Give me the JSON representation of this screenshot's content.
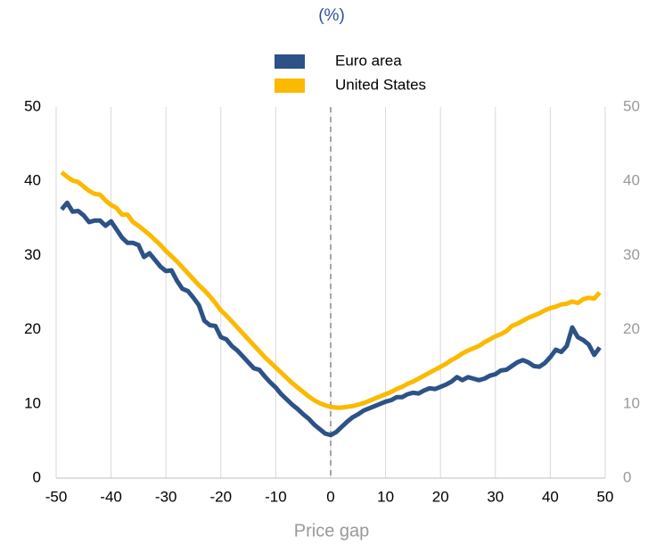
{
  "chart_data": {
    "type": "line",
    "title": "(%)",
    "x_label": "Price gap",
    "x": [
      -49,
      -48,
      -47,
      -46,
      -45,
      -44,
      -43,
      -42,
      -41,
      -40,
      -39,
      -38,
      -37,
      -36,
      -35,
      -34,
      -33,
      -32,
      -31,
      -30,
      -29,
      -28,
      -27,
      -26,
      -25,
      -24,
      -23,
      -22,
      -21,
      -20,
      -19,
      -18,
      -17,
      -16,
      -15,
      -14,
      -13,
      -12,
      -11,
      -10,
      -9,
      -8,
      -7,
      -6,
      -5,
      -4,
      -3,
      -2,
      -1,
      0,
      1,
      2,
      3,
      4,
      5,
      6,
      7,
      8,
      9,
      10,
      11,
      12,
      13,
      14,
      15,
      16,
      17,
      18,
      19,
      20,
      21,
      22,
      23,
      24,
      25,
      26,
      27,
      28,
      29,
      30,
      31,
      32,
      33,
      34,
      35,
      36,
      37,
      38,
      39,
      40,
      41,
      42,
      43,
      44,
      45,
      46,
      47,
      48,
      49
    ],
    "series": [
      {
        "name": "Euro area",
        "color": "#2c5287",
        "values": [
          36.2,
          37.1,
          35.9,
          36.0,
          35.4,
          34.5,
          34.7,
          34.7,
          34.0,
          34.6,
          33.5,
          32.4,
          31.7,
          31.7,
          31.4,
          29.8,
          30.3,
          29.4,
          28.5,
          27.9,
          28.0,
          26.6,
          25.5,
          25.2,
          24.3,
          23.3,
          21.2,
          20.6,
          20.5,
          19.0,
          18.7,
          17.8,
          17.2,
          16.4,
          15.6,
          14.8,
          14.6,
          13.7,
          12.9,
          12.2,
          11.3,
          10.6,
          9.9,
          9.3,
          8.6,
          8.0,
          7.2,
          6.6,
          6.0,
          5.8,
          6.2,
          6.9,
          7.6,
          8.2,
          8.6,
          9.1,
          9.4,
          9.7,
          10.0,
          10.3,
          10.5,
          10.9,
          10.9,
          11.3,
          11.5,
          11.4,
          11.8,
          12.1,
          12.0,
          12.3,
          12.6,
          13.0,
          13.6,
          13.2,
          13.6,
          13.4,
          13.2,
          13.4,
          13.8,
          14.0,
          14.5,
          14.6,
          15.1,
          15.6,
          15.9,
          15.6,
          15.1,
          15.0,
          15.5,
          16.3,
          17.3,
          17.0,
          17.8,
          20.3,
          19.0,
          18.6,
          18.0,
          16.6,
          17.6
        ]
      },
      {
        "name": "United States",
        "color": "#fbb900",
        "values": [
          41.2,
          40.6,
          40.1,
          39.9,
          39.3,
          38.7,
          38.3,
          38.2,
          37.4,
          36.8,
          36.4,
          35.5,
          35.5,
          34.5,
          34.0,
          33.4,
          32.8,
          32.1,
          31.4,
          30.6,
          29.9,
          29.2,
          28.4,
          27.6,
          26.8,
          26.0,
          25.3,
          24.5,
          23.6,
          22.6,
          21.9,
          21.1,
          20.3,
          19.5,
          18.7,
          17.9,
          17.1,
          16.3,
          15.6,
          14.9,
          14.2,
          13.5,
          12.8,
          12.2,
          11.6,
          11.0,
          10.5,
          10.1,
          9.8,
          9.6,
          9.5,
          9.5,
          9.6,
          9.7,
          9.9,
          10.1,
          10.4,
          10.7,
          11.0,
          11.3,
          11.6,
          12.0,
          12.3,
          12.7,
          13.0,
          13.4,
          13.8,
          14.2,
          14.6,
          15.0,
          15.4,
          15.9,
          16.3,
          16.8,
          17.2,
          17.5,
          17.8,
          18.3,
          18.7,
          19.1,
          19.4,
          19.8,
          20.5,
          20.8,
          21.2,
          21.6,
          21.9,
          22.2,
          22.6,
          22.9,
          23.1,
          23.4,
          23.5,
          23.8,
          23.6,
          24.1,
          24.3,
          24.2,
          25.0
        ]
      }
    ],
    "xlim": [
      -50,
      50
    ],
    "xticks": [
      -50,
      -40,
      -30,
      -20,
      -10,
      0,
      10,
      20,
      30,
      40,
      50
    ],
    "ylim": [
      0,
      50
    ],
    "yticks": [
      0,
      10,
      20,
      30,
      40,
      50
    ],
    "y2lim": [
      0,
      50
    ],
    "y2ticks": [
      0,
      10,
      20,
      30,
      40,
      50
    ],
    "grid": "x",
    "vline": 0
  }
}
